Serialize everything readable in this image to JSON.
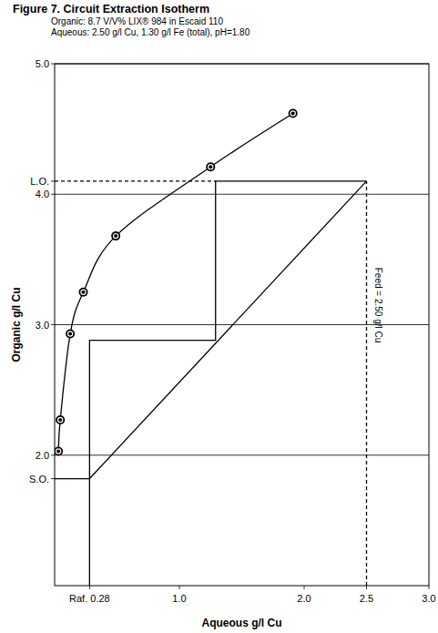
{
  "chart_data": {
    "type": "line",
    "title": "Figure 7. Circuit Extraction Isotherm",
    "subtitle": [
      "Organic: 8.7 V/V% LIX® 984 in Escaid 110",
      "Aqueous: 2.50 g/l Cu, 1.30 g/l Fe (total), pH=1.80"
    ],
    "x_label": "Aqueous g/l Cu",
    "y_label": "Organic g/l Cu",
    "xlim": [
      0,
      3
    ],
    "ylim": [
      1,
      5
    ],
    "xticks": [
      {
        "value": 0.28,
        "label": "Raf. 0.28"
      },
      {
        "value": 1,
        "label": "1.0"
      },
      {
        "value": 2,
        "label": "2.0"
      },
      {
        "value": 2.5,
        "label": "2.5"
      },
      {
        "value": 3,
        "label": "3.0"
      }
    ],
    "yticks": [
      {
        "value": 1.82,
        "label": "S.O."
      },
      {
        "value": 2,
        "label": "2.0"
      },
      {
        "value": 3,
        "label": "3.0"
      },
      {
        "value": 4,
        "label": "4.0"
      },
      {
        "value": 4.1,
        "label": "L.O."
      },
      {
        "value": 5,
        "label": "5.0"
      }
    ],
    "grid": "y",
    "series": [
      {
        "color": "#000000",
        "marker": "circle",
        "line_style": "smooth",
        "x": [
          0.03,
          0.045,
          0.125,
          0.23,
          0.49,
          1.25,
          1.91
        ],
        "values": [
          2.03,
          2.27,
          2.93,
          3.25,
          3.68,
          4.21,
          4.62
        ]
      },
      {
        "color": "#000000",
        "line_style": "solid",
        "x": [
          0.28,
          2.5
        ],
        "values": [
          1.82,
          4.1
        ]
      },
      {
        "color": "#000000",
        "line_style": "solid",
        "x": [
          2.5,
          1.29,
          1.29,
          0.28,
          0.28
        ],
        "values": [
          4.1,
          4.1,
          2.88,
          2.88,
          1
        ]
      },
      {
        "color": "#000000",
        "line_style": "dashed",
        "x": [
          0,
          1.29
        ],
        "values": [
          4.1,
          4.1
        ]
      },
      {
        "color": "#000000",
        "line_style": "solid",
        "x": [
          0,
          0.28
        ],
        "values": [
          1.82,
          1.82
        ]
      },
      {
        "color": "#000000",
        "line_style": "dashed",
        "x": [
          2.5,
          2.5
        ],
        "values": [
          1,
          4.1
        ]
      }
    ],
    "annotations": [
      {
        "text": "Feed = 2.50 g/l Cu",
        "x": 2.5,
        "y": 3.15
      }
    ]
  }
}
